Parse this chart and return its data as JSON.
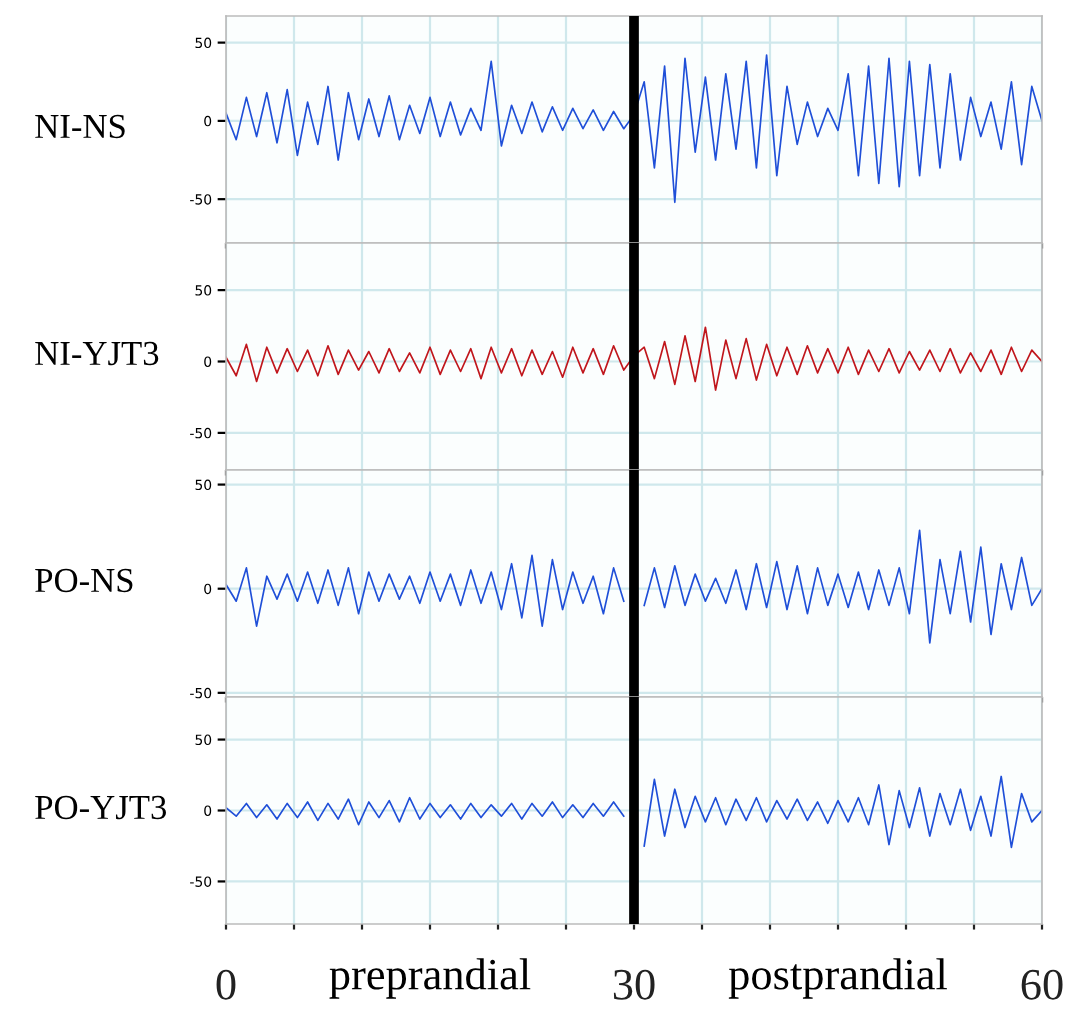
{
  "chart_data": [
    {
      "type": "line",
      "ylabel": "NI-NS",
      "xlim": [
        0,
        60
      ],
      "ylim": [
        -78,
        67
      ],
      "tick_labels": "y",
      "grid": true,
      "xticks": [
        {
          "value": 0,
          "label": null
        },
        {
          "value": 5,
          "label": null
        },
        {
          "value": 10,
          "label": null
        },
        {
          "value": 15,
          "label": null
        },
        {
          "value": 20,
          "label": null
        },
        {
          "value": 25,
          "label": null
        },
        {
          "value": 30,
          "label": null
        },
        {
          "value": 35,
          "label": null
        },
        {
          "value": 40,
          "label": null
        },
        {
          "value": 45,
          "label": null
        },
        {
          "value": 50,
          "label": null
        },
        {
          "value": 55,
          "label": null
        },
        {
          "value": 60,
          "label": null
        }
      ],
      "yticks": [
        -50,
        0,
        50
      ],
      "ref_lines": [
        {
          "axis": "x",
          "value": 30,
          "color": "#000000"
        }
      ],
      "x": [
        0,
        0.75,
        1.5,
        2.25,
        3,
        3.75,
        4.5,
        5.25,
        6,
        6.75,
        7.5,
        8.25,
        9,
        9.75,
        10.5,
        11.25,
        12,
        12.75,
        13.5,
        14.25,
        15,
        15.75,
        16.5,
        17.25,
        18,
        18.75,
        19.5,
        20.25,
        21,
        21.75,
        22.5,
        23.25,
        24,
        24.75,
        25.5,
        26.25,
        27,
        27.75,
        28.5,
        29.25,
        30,
        30.75,
        31.5,
        32.25,
        33,
        33.75,
        34.5,
        35.25,
        36,
        36.75,
        37.5,
        38.25,
        39,
        39.75,
        40.5,
        41.25,
        42,
        42.75,
        43.5,
        44.25,
        45,
        45.75,
        46.5,
        47.25,
        48,
        48.75,
        49.5,
        50.25,
        51,
        51.75,
        52.5,
        53.25,
        54,
        54.75,
        55.5,
        56.25,
        57,
        57.75,
        58.5,
        59.25,
        60
      ],
      "series": [
        {
          "color": "#1f4fd8",
          "values": [
            5,
            -12,
            15,
            -10,
            18,
            -14,
            20,
            -22,
            12,
            -15,
            22,
            -25,
            18,
            -12,
            14,
            -10,
            16,
            -12,
            10,
            -8,
            15,
            -10,
            12,
            -9,
            8,
            -6,
            38,
            -16,
            10,
            -8,
            12,
            -7,
            9,
            -6,
            8,
            -5,
            7,
            -6,
            6,
            -5,
            4,
            25,
            -30,
            35,
            -52,
            40,
            -20,
            28,
            -25,
            30,
            -18,
            38,
            -30,
            42,
            -35,
            22,
            -15,
            12,
            -10,
            8,
            -6,
            30,
            -35,
            35,
            -40,
            40,
            -42,
            38,
            -35,
            36,
            -30,
            30,
            -25,
            15,
            -10,
            12,
            -18,
            25,
            -28,
            22,
            0
          ]
        }
      ]
    },
    {
      "type": "line",
      "ylabel": "NI-YJT3",
      "xlim": [
        0,
        60
      ],
      "ylim": [
        -76,
        83
      ],
      "tick_labels": "y",
      "grid": true,
      "xticks": [
        {
          "value": 0,
          "label": null
        },
        {
          "value": 5,
          "label": null
        },
        {
          "value": 10,
          "label": null
        },
        {
          "value": 15,
          "label": null
        },
        {
          "value": 20,
          "label": null
        },
        {
          "value": 25,
          "label": null
        },
        {
          "value": 30,
          "label": null
        },
        {
          "value": 35,
          "label": null
        },
        {
          "value": 40,
          "label": null
        },
        {
          "value": 45,
          "label": null
        },
        {
          "value": 50,
          "label": null
        },
        {
          "value": 55,
          "label": null
        },
        {
          "value": 60,
          "label": null
        }
      ],
      "yticks": [
        -50,
        0,
        50
      ],
      "ref_lines": [
        {
          "axis": "x",
          "value": 30,
          "color": "#000000"
        }
      ],
      "x": [
        0,
        0.75,
        1.5,
        2.25,
        3,
        3.75,
        4.5,
        5.25,
        6,
        6.75,
        7.5,
        8.25,
        9,
        9.75,
        10.5,
        11.25,
        12,
        12.75,
        13.5,
        14.25,
        15,
        15.75,
        16.5,
        17.25,
        18,
        18.75,
        19.5,
        20.25,
        21,
        21.75,
        22.5,
        23.25,
        24,
        24.75,
        25.5,
        26.25,
        27,
        27.75,
        28.5,
        29.25,
        30,
        30.75,
        31.5,
        32.25,
        33,
        33.75,
        34.5,
        35.25,
        36,
        36.75,
        37.5,
        38.25,
        39,
        39.75,
        40.5,
        41.25,
        42,
        42.75,
        43.5,
        44.25,
        45,
        45.75,
        46.5,
        47.25,
        48,
        48.75,
        49.5,
        50.25,
        51,
        51.75,
        52.5,
        53.25,
        54,
        54.75,
        55.5,
        56.25,
        57,
        57.75,
        58.5,
        59.25,
        60
      ],
      "series": [
        {
          "color": "#c0161c",
          "values": [
            3,
            -10,
            12,
            -14,
            10,
            -8,
            9,
            -7,
            8,
            -10,
            11,
            -9,
            8,
            -6,
            7,
            -8,
            9,
            -7,
            6,
            -8,
            10,
            -9,
            8,
            -7,
            9,
            -12,
            10,
            -8,
            9,
            -10,
            8,
            -9,
            7,
            -11,
            10,
            -8,
            9,
            -9,
            11,
            -6,
            4,
            10,
            -12,
            14,
            -16,
            18,
            -14,
            24,
            -20,
            15,
            -12,
            16,
            -13,
            12,
            -10,
            10,
            -9,
            11,
            -8,
            9,
            -8,
            10,
            -9,
            8,
            -7,
            9,
            -8,
            7,
            -6,
            8,
            -7,
            9,
            -8,
            6,
            -7,
            8,
            -9,
            10,
            -7,
            8,
            0
          ]
        }
      ]
    },
    {
      "type": "line",
      "ylabel": "PO-NS",
      "xlim": [
        0,
        60
      ],
      "ylim": [
        -52,
        57
      ],
      "tick_labels": "y",
      "grid": true,
      "xticks": [
        {
          "value": 0,
          "label": null
        },
        {
          "value": 5,
          "label": null
        },
        {
          "value": 10,
          "label": null
        },
        {
          "value": 15,
          "label": null
        },
        {
          "value": 20,
          "label": null
        },
        {
          "value": 25,
          "label": null
        },
        {
          "value": 30,
          "label": null
        },
        {
          "value": 35,
          "label": null
        },
        {
          "value": 40,
          "label": null
        },
        {
          "value": 45,
          "label": null
        },
        {
          "value": 50,
          "label": null
        },
        {
          "value": 55,
          "label": null
        },
        {
          "value": 60,
          "label": null
        }
      ],
      "yticks": [
        -50,
        0,
        50
      ],
      "ref_lines": [
        {
          "axis": "x",
          "value": 30,
          "color": "#000000"
        }
      ],
      "x": [
        0,
        0.75,
        1.5,
        2.25,
        3,
        3.75,
        4.5,
        5.25,
        6,
        6.75,
        7.5,
        8.25,
        9,
        9.75,
        10.5,
        11.25,
        12,
        12.75,
        13.5,
        14.25,
        15,
        15.75,
        16.5,
        17.25,
        18,
        18.75,
        19.5,
        20.25,
        21,
        21.75,
        22.5,
        23.25,
        24,
        24.75,
        25.5,
        26.25,
        27,
        27.75,
        28.5,
        29.25,
        30,
        30.75,
        31.5,
        32.25,
        33,
        33.75,
        34.5,
        35.25,
        36,
        36.75,
        37.5,
        38.25,
        39,
        39.75,
        40.5,
        41.25,
        42,
        42.75,
        43.5,
        44.25,
        45,
        45.75,
        46.5,
        47.25,
        48,
        48.75,
        49.5,
        50.25,
        51,
        51.75,
        52.5,
        53.25,
        54,
        54.75,
        55.5,
        56.25,
        57,
        57.75,
        58.5,
        59.25,
        60
      ],
      "series": [
        {
          "color": "#1f4fd8",
          "values": [
            2,
            -6,
            10,
            -18,
            6,
            -5,
            7,
            -6,
            8,
            -7,
            9,
            -8,
            10,
            -12,
            8,
            -6,
            7,
            -5,
            6,
            -7,
            8,
            -6,
            7,
            -8,
            9,
            -7,
            8,
            -10,
            12,
            -14,
            16,
            -18,
            14,
            -10,
            8,
            -7,
            6,
            -12,
            10,
            -6,
            null,
            -8,
            10,
            -9,
            11,
            -8,
            7,
            -6,
            5,
            -7,
            9,
            -10,
            12,
            -9,
            13,
            -10,
            11,
            -12,
            10,
            -8,
            7,
            -9,
            8,
            -10,
            9,
            -8,
            10,
            -12,
            28,
            -26,
            14,
            -12,
            18,
            -16,
            20,
            -22,
            12,
            -10,
            15,
            -8,
            0
          ]
        }
      ]
    },
    {
      "type": "line",
      "ylabel": "PO-YJT3",
      "xlim": [
        0,
        60
      ],
      "ylim": [
        -80,
        80
      ],
      "grid": true,
      "xticks": [
        0,
        {
          "value": 5,
          "label": null
        },
        {
          "value": 10,
          "label": null
        },
        {
          "value": 15,
          "label": null
        },
        {
          "value": 20,
          "label": null
        },
        {
          "value": 25,
          "label": null
        },
        30,
        {
          "value": 35,
          "label": null
        },
        {
          "value": 40,
          "label": null
        },
        {
          "value": 45,
          "label": null
        },
        {
          "value": 50,
          "label": null
        },
        {
          "value": 55,
          "label": null
        },
        60
      ],
      "yticks": [
        -50,
        0,
        50
      ],
      "ref_lines": [
        {
          "axis": "x",
          "value": 30,
          "color": "#000000"
        }
      ],
      "annotations": [
        "preprandial",
        "postprandial"
      ],
      "x": [
        0,
        0.75,
        1.5,
        2.25,
        3,
        3.75,
        4.5,
        5.25,
        6,
        6.75,
        7.5,
        8.25,
        9,
        9.75,
        10.5,
        11.25,
        12,
        12.75,
        13.5,
        14.25,
        15,
        15.75,
        16.5,
        17.25,
        18,
        18.75,
        19.5,
        20.25,
        21,
        21.75,
        22.5,
        23.25,
        24,
        24.75,
        25.5,
        26.25,
        27,
        27.75,
        28.5,
        29.25,
        30,
        30.75,
        31.5,
        32.25,
        33,
        33.75,
        34.5,
        35.25,
        36,
        36.75,
        37.5,
        38.25,
        39,
        39.75,
        40.5,
        41.25,
        42,
        42.75,
        43.5,
        44.25,
        45,
        45.75,
        46.5,
        47.25,
        48,
        48.75,
        49.5,
        50.25,
        51,
        51.75,
        52.5,
        53.25,
        54,
        54.75,
        55.5,
        56.25,
        57,
        57.75,
        58.5,
        59.25,
        60
      ],
      "series": [
        {
          "color": "#1f4fd8",
          "values": [
            2,
            -4,
            5,
            -5,
            4,
            -6,
            5,
            -5,
            6,
            -7,
            5,
            -6,
            8,
            -10,
            6,
            -5,
            7,
            -8,
            9,
            -6,
            5,
            -5,
            4,
            -6,
            5,
            -5,
            4,
            -4,
            5,
            -6,
            5,
            -4,
            6,
            -5,
            4,
            -5,
            5,
            -4,
            6,
            -4,
            null,
            -25,
            22,
            -18,
            15,
            -12,
            10,
            -8,
            9,
            -10,
            8,
            -7,
            9,
            -8,
            7,
            -6,
            8,
            -7,
            6,
            -9,
            7,
            -8,
            9,
            -10,
            18,
            -24,
            14,
            -12,
            16,
            -18,
            12,
            -10,
            15,
            -14,
            10,
            -18,
            24,
            -26,
            12,
            -8,
            0
          ]
        }
      ]
    }
  ]
}
